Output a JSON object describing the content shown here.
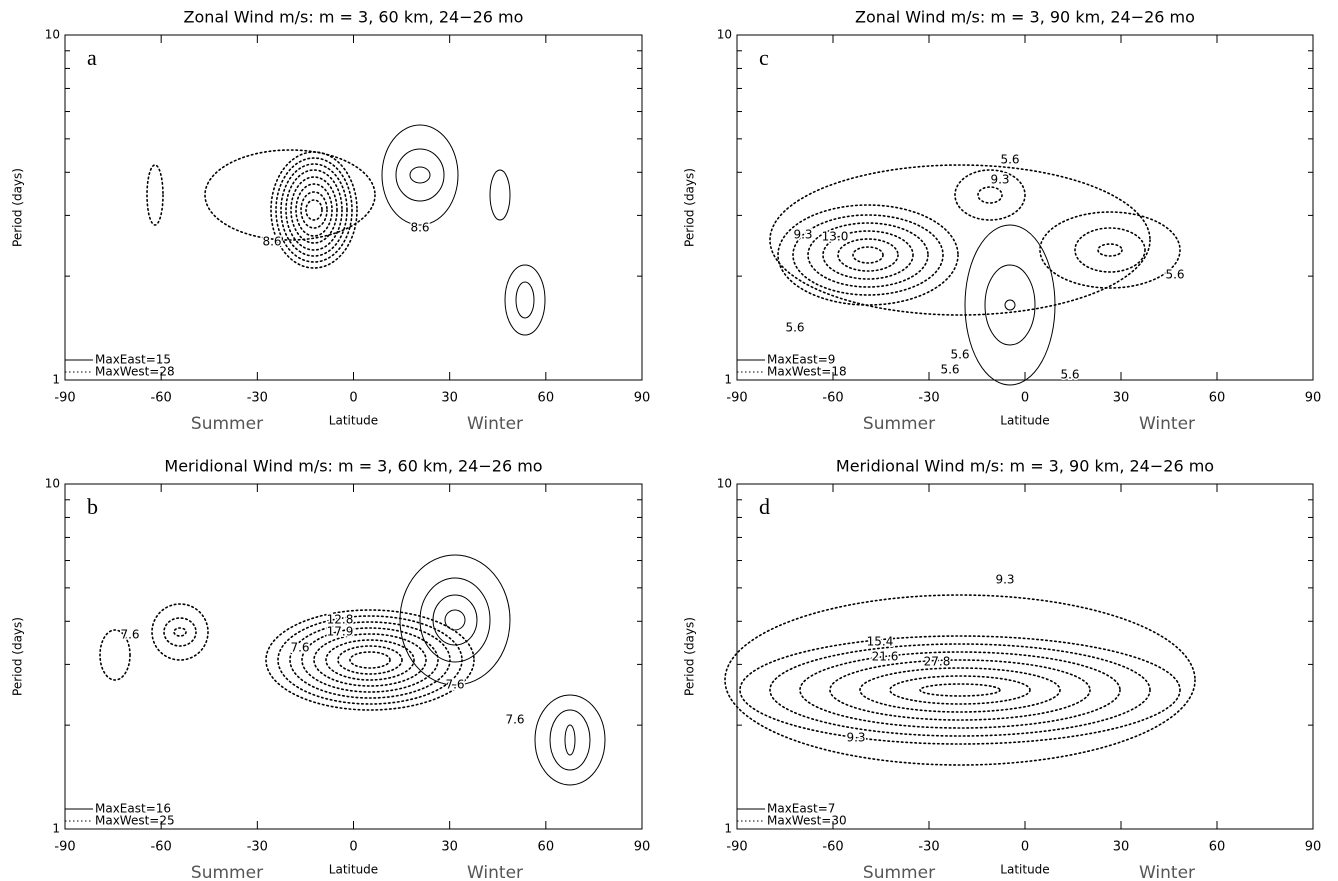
{
  "chart_data": [
    {
      "type": "contour",
      "title": "Zonal Wind m/s: m = 3, 60 km, 24−26 mo",
      "panel_label": "a",
      "xlabel": "Latitude",
      "ylabel": "Period (days)",
      "x_annotations": [
        "Summer",
        "Winter"
      ],
      "xlim": [
        -90,
        90
      ],
      "xticks": [
        -90,
        -60,
        -30,
        0,
        30,
        60,
        90
      ],
      "ylim": [
        1,
        10
      ],
      "yticks": [
        1,
        10
      ],
      "minor_yticks": [
        2,
        3,
        4,
        5,
        6,
        7,
        8,
        9
      ],
      "log_y": true,
      "legend": [
        {
          "name": "MaxEast=15",
          "linestyle": "solid"
        },
        {
          "name": "MaxWest=28",
          "linestyle": "dotted"
        }
      ],
      "contour_labels": [
        "8.6",
        "8.6"
      ]
    },
    {
      "type": "contour",
      "title": "Meridional Wind m/s: m = 3, 60 km, 24−26 mo",
      "panel_label": "b",
      "xlabel": "Latitude",
      "ylabel": "Period (days)",
      "x_annotations": [
        "Summer",
        "Winter"
      ],
      "xlim": [
        -90,
        90
      ],
      "xticks": [
        -90,
        -60,
        -30,
        0,
        30,
        60,
        90
      ],
      "ylim": [
        1,
        10
      ],
      "yticks": [
        1,
        10
      ],
      "minor_yticks": [
        2,
        3,
        4,
        5,
        6,
        7,
        8,
        9
      ],
      "log_y": true,
      "legend": [
        {
          "name": "MaxEast=16",
          "linestyle": "solid"
        },
        {
          "name": "MaxWest=25",
          "linestyle": "dotted"
        }
      ],
      "contour_labels": [
        "7.6",
        "7.6",
        "12.8",
        "17.9",
        "7.6",
        "7.6"
      ]
    },
    {
      "type": "contour",
      "title": "Zonal Wind m/s: m = 3, 90 km, 24−26 mo",
      "panel_label": "c",
      "xlabel": "Latitude",
      "ylabel": "Period (days)",
      "x_annotations": [
        "Summer",
        "Winter"
      ],
      "xlim": [
        -90,
        90
      ],
      "xticks": [
        -90,
        -60,
        -30,
        0,
        30,
        60,
        90
      ],
      "ylim": [
        1,
        10
      ],
      "yticks": [
        1,
        10
      ],
      "minor_yticks": [
        2,
        3,
        4,
        5,
        6,
        7,
        8,
        9
      ],
      "log_y": true,
      "legend": [
        {
          "name": "MaxEast=9",
          "linestyle": "solid"
        },
        {
          "name": "MaxWest=18",
          "linestyle": "dotted"
        }
      ],
      "contour_labels": [
        "5.6",
        "9.3",
        "9.3",
        "13.0",
        "5.6",
        "5.6",
        "5.6",
        "5.6",
        "5.6"
      ]
    },
    {
      "type": "contour",
      "title": "Meridional Wind m/s: m = 3, 90 km, 24−26 mo",
      "panel_label": "d",
      "xlabel": "Latitude",
      "ylabel": "Period (days)",
      "x_annotations": [
        "Summer",
        "Winter"
      ],
      "xlim": [
        -90,
        90
      ],
      "xticks": [
        -90,
        -60,
        -30,
        0,
        30,
        60,
        90
      ],
      "ylim": [
        1,
        10
      ],
      "yticks": [
        1,
        10
      ],
      "minor_yticks": [
        2,
        3,
        4,
        5,
        6,
        7,
        8,
        9
      ],
      "log_y": true,
      "legend": [
        {
          "name": "MaxEast=7",
          "linestyle": "solid"
        },
        {
          "name": "MaxWest=30",
          "linestyle": "dotted"
        }
      ],
      "contour_labels": [
        "9.3",
        "15.4",
        "21.6",
        "27.8",
        "9.3"
      ]
    }
  ]
}
